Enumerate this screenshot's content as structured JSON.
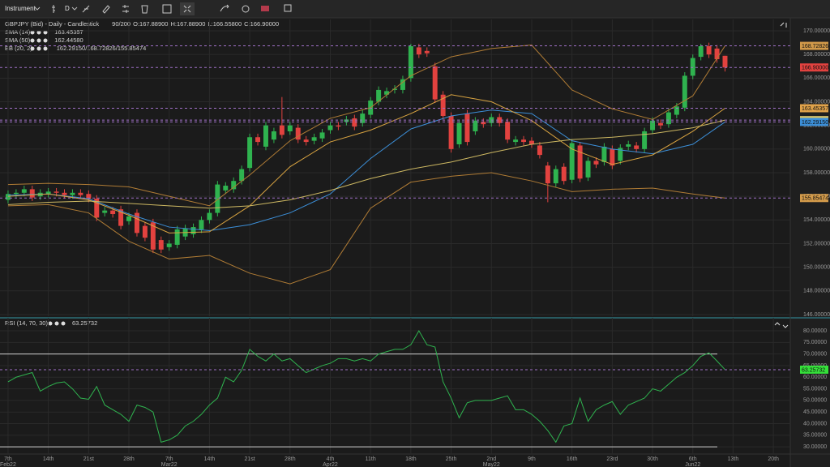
{
  "toolbar": {
    "instrument": "Instrument",
    "period": "D"
  },
  "chart_data": [
    {
      "type": "candlestick",
      "title": "GBPJPY (Bid) - Daily - Candlestick",
      "count": "90/200",
      "ohlc_labels": [
        "O:167.88900",
        "H:167.88900",
        "L:166.55800",
        "C:166.90000"
      ],
      "xlim": [
        -1,
        97.1
      ],
      "xticks": [
        {
          "value": 0,
          "label": "7th",
          "month": "Feb22"
        },
        {
          "value": 5,
          "label": "14th"
        },
        {
          "value": 10,
          "label": "21st"
        },
        {
          "value": 15,
          "label": "28th"
        },
        {
          "value": 20,
          "label": "7th",
          "month": "Mar22"
        },
        {
          "value": 25,
          "label": "14th"
        },
        {
          "value": 30,
          "label": "21st"
        },
        {
          "value": 35,
          "label": "28th"
        },
        {
          "value": 40,
          "label": "4th",
          "month": "Apr22"
        },
        {
          "value": 45,
          "label": "11th"
        },
        {
          "value": 50,
          "label": "18th"
        },
        {
          "value": 55,
          "label": "25th"
        },
        {
          "value": 60,
          "label": "2nd",
          "month": "May22"
        },
        {
          "value": 65,
          "label": "9th"
        },
        {
          "value": 70,
          "label": "16th"
        },
        {
          "value": 75,
          "label": "23rd"
        },
        {
          "value": 80,
          "label": "30th"
        },
        {
          "value": 85,
          "label": "6th",
          "month": "Jun22"
        },
        {
          "value": 90,
          "label": "13th"
        },
        {
          "value": 95,
          "label": "20th"
        }
      ],
      "ylim": [
        145.86,
        170.55
      ],
      "yticks": [
        {
          "value": 146,
          "label": "146.00000"
        },
        {
          "value": 148,
          "label": "148.00000"
        },
        {
          "value": 150,
          "label": "150.00000"
        },
        {
          "value": 152,
          "label": "152.00000"
        },
        {
          "value": 154,
          "label": "154.00000"
        },
        {
          "value": 156,
          "label": "156.00000"
        },
        {
          "value": 158,
          "label": "158.00000"
        },
        {
          "value": 160,
          "label": "160.00000"
        },
        {
          "value": 162,
          "label": "162.00000"
        },
        {
          "value": 164,
          "label": "164.00000"
        },
        {
          "value": 166,
          "label": "166.00000"
        },
        {
          "value": 168,
          "label": "168.00000"
        },
        {
          "value": 170,
          "label": "170.00000"
        }
      ],
      "grid": true,
      "up_color": "#2fb34f",
      "down_color": "#e2423f",
      "open": [
        155.7,
        156.2,
        156.3,
        156.6,
        156.0,
        156.2,
        156.4,
        156.3,
        156.1,
        156.3,
        156.2,
        155.8,
        154.6,
        154.8,
        154.9,
        153.9,
        154.6,
        153.5,
        153.8,
        152.3,
        151.7,
        151.9,
        152.6,
        152.8,
        153.2,
        154.0,
        154.6,
        156.5,
        156.6,
        157.3,
        158.4,
        161.0,
        160.2,
        160.8,
        162.0,
        161.5,
        161.8,
        160.8,
        160.7,
        160.9,
        161.6,
        162.0,
        162.3,
        162.6,
        162.2,
        162.9,
        164.0,
        164.6,
        165.0,
        165.0,
        166.0,
        168.6,
        168.3,
        167.0,
        164.6,
        162.8,
        160.4,
        163.0,
        161.5,
        162.3,
        162.2,
        162.7,
        162.3,
        160.6,
        160.8,
        160.7,
        160.3,
        158.6,
        157.1,
        158.5,
        157.4,
        160.3,
        157.6,
        159.0,
        158.9,
        160.0,
        159.0,
        160.2,
        160.3,
        160.0,
        161.6,
        162.2,
        162.1,
        162.9,
        163.5,
        166.2,
        167.8,
        168.7,
        168.5,
        167.889
      ],
      "high": [
        156.5,
        156.6,
        156.9,
        156.9,
        156.6,
        156.7,
        156.7,
        156.6,
        156.6,
        156.6,
        156.5,
        156.1,
        155.1,
        155.1,
        155.2,
        154.6,
        154.9,
        153.8,
        154.1,
        152.6,
        152.3,
        153.5,
        153.6,
        153.7,
        154.3,
        154.9,
        157.3,
        157.2,
        157.6,
        158.6,
        161.3,
        161.3,
        162.3,
        161.8,
        164.4,
        162.3,
        162.1,
        161.1,
        161.3,
        161.7,
        162.3,
        162.3,
        162.8,
        162.9,
        163.3,
        164.4,
        165.3,
        165.2,
        165.4,
        166.2,
        168.9,
        168.9,
        168.6,
        167.3,
        164.9,
        163.1,
        162.5,
        163.3,
        162.7,
        162.6,
        163.0,
        163.0,
        162.6,
        161.1,
        161.1,
        161.0,
        160.6,
        158.9,
        158.6,
        158.8,
        160.8,
        160.6,
        159.3,
        159.3,
        160.5,
        160.3,
        160.4,
        160.7,
        160.6,
        161.8,
        162.7,
        162.5,
        163.4,
        163.9,
        166.5,
        168.0,
        168.9,
        169.0,
        168.8,
        167.889
      ],
      "low": [
        155.4,
        155.9,
        156.0,
        155.6,
        155.7,
        155.9,
        156.0,
        155.8,
        155.8,
        155.8,
        155.5,
        153.9,
        154.3,
        154.2,
        153.2,
        153.6,
        152.6,
        152.2,
        151.2,
        151.2,
        151.4,
        151.6,
        152.3,
        152.5,
        152.9,
        153.7,
        154.3,
        156.2,
        156.3,
        157.0,
        158.1,
        160.3,
        159.9,
        160.5,
        160.9,
        161.2,
        160.5,
        160.3,
        160.4,
        160.6,
        161.3,
        161.6,
        162.0,
        161.6,
        161.9,
        162.6,
        163.7,
        164.3,
        164.7,
        164.7,
        165.7,
        167.7,
        167.8,
        163.9,
        162.5,
        159.7,
        160.1,
        160.3,
        161.2,
        161.8,
        161.9,
        161.9,
        160.5,
        160.3,
        160.3,
        160.1,
        159.2,
        155.5,
        156.8,
        157.0,
        157.1,
        157.2,
        157.3,
        158.4,
        158.6,
        158.3,
        158.7,
        159.9,
        159.7,
        159.7,
        161.3,
        161.7,
        161.8,
        162.6,
        163.2,
        165.9,
        167.5,
        167.7,
        167.3,
        166.558
      ],
      "close": [
        156.2,
        156.3,
        156.6,
        155.9,
        156.3,
        156.4,
        156.3,
        156.1,
        156.3,
        156.1,
        155.8,
        154.2,
        154.8,
        154.5,
        153.5,
        154.3,
        152.9,
        152.5,
        151.5,
        151.5,
        152.0,
        153.2,
        153.3,
        153.4,
        154.0,
        154.6,
        157.0,
        156.9,
        157.3,
        158.3,
        161.0,
        160.6,
        162.0,
        161.5,
        161.2,
        162.0,
        160.8,
        160.6,
        161.0,
        161.4,
        162.0,
        161.9,
        162.5,
        161.9,
        163.0,
        164.1,
        165.0,
        164.9,
        165.1,
        165.9,
        168.7,
        168.0,
        168.1,
        164.2,
        162.8,
        160.0,
        162.2,
        160.6,
        162.4,
        162.1,
        162.7,
        162.2,
        160.8,
        160.8,
        160.6,
        160.4,
        159.5,
        157.1,
        158.3,
        157.3,
        160.5,
        157.5,
        159.0,
        158.7,
        160.2,
        158.6,
        160.1,
        160.4,
        160.0,
        161.5,
        162.4,
        162.0,
        163.1,
        163.6,
        166.2,
        167.7,
        168.7,
        168.0,
        167.6,
        166.9
      ],
      "line_x": [
        0,
        5,
        10,
        15,
        20,
        25,
        30,
        35,
        40,
        45,
        50,
        55,
        60,
        65,
        70,
        75,
        80,
        85,
        89
      ],
      "series": [
        {
          "name": "SMA (14)",
          "legend_value": "163.45357",
          "color": "#d9a441",
          "values": [
            156.0,
            156.2,
            155.7,
            154.4,
            152.9,
            153.0,
            155.2,
            158.5,
            160.6,
            161.6,
            163.0,
            164.6,
            164.0,
            162.4,
            160.0,
            158.7,
            159.5,
            161.5,
            163.45357
          ]
        },
        {
          "name": "SMA (50)",
          "legend_value": "162.44580",
          "color": "#cdb862",
          "values": [
            155.3,
            155.5,
            155.6,
            155.4,
            155.2,
            155.0,
            155.2,
            155.7,
            156.5,
            157.5,
            158.3,
            158.9,
            159.7,
            160.4,
            160.8,
            161.0,
            161.3,
            161.8,
            162.4458
          ]
        }
      ],
      "bands": {
        "name": "BB (20, 2)",
        "legend_value": "162.29150/168.72826/155.85474",
        "basis_color": "#3c8fd8",
        "band_color": "#b07c35",
        "basis": [
          156.1,
          156.2,
          155.8,
          154.5,
          153.4,
          153.1,
          153.6,
          154.6,
          156.2,
          159.2,
          161.7,
          162.8,
          163.3,
          163.0,
          160.7,
          160.0,
          159.6,
          160.4,
          162.2915
        ],
        "upper": [
          157.0,
          157.1,
          157.0,
          156.8,
          156.0,
          155.2,
          157.8,
          160.7,
          162.6,
          163.5,
          166.2,
          167.8,
          168.5,
          168.8,
          165.0,
          163.4,
          162.5,
          164.5,
          168.72826
        ],
        "lower": [
          155.2,
          155.3,
          154.6,
          152.2,
          150.7,
          151.0,
          149.5,
          148.6,
          149.8,
          155.0,
          157.2,
          157.7,
          158.0,
          157.3,
          156.4,
          156.6,
          156.7,
          156.2,
          155.85474
        ]
      },
      "price_markers": [
        {
          "value": 168.72826,
          "label": "168.72826",
          "color": "#d29a4a"
        },
        {
          "value": 166.9,
          "label": "166.90000",
          "color": "#e2423f"
        },
        {
          "value": 163.45357,
          "label": "163.45357",
          "color": "#e0a24a"
        },
        {
          "value": 162.4458,
          "label": "162.44580",
          "color": "#d8c56a"
        },
        {
          "value": 162.2915,
          "label": "162.29150",
          "color": "#3c8fd8"
        },
        {
          "value": 155.85474,
          "label": "155.85474",
          "color": "#d29a4a"
        }
      ]
    },
    {
      "type": "line",
      "title": "RSI (14, 70, 30)",
      "legend_value": "63.25732",
      "color": "#2fb34f",
      "xlim": [
        -1,
        97.1
      ],
      "ylim": [
        26.9,
        83.5
      ],
      "yticks": [
        {
          "value": 30,
          "label": "30.00000"
        },
        {
          "value": 35,
          "label": "35.00000"
        },
        {
          "value": 40,
          "label": "40.00000"
        },
        {
          "value": 45,
          "label": "45.00000"
        },
        {
          "value": 50,
          "label": "50.00000"
        },
        {
          "value": 55,
          "label": "55.00000"
        },
        {
          "value": 60,
          "label": "60.00000"
        },
        {
          "value": 65,
          "label": "65.00000"
        },
        {
          "value": 70,
          "label": "70.00000"
        },
        {
          "value": 75,
          "label": "75.00000"
        },
        {
          "value": 80,
          "label": "80.00000"
        }
      ],
      "levels": [
        70,
        30
      ],
      "values": [
        58,
        60,
        61,
        62,
        54,
        56,
        57.5,
        58,
        55,
        51,
        50.5,
        56,
        48,
        46,
        44,
        41,
        48,
        47,
        45,
        32,
        33,
        35,
        39,
        41,
        44,
        48,
        51,
        60,
        58,
        63,
        72,
        69,
        67,
        70,
        67,
        68,
        65,
        62,
        63.5,
        65,
        66,
        68,
        68,
        67,
        68,
        67,
        70,
        71,
        72,
        72,
        74,
        80,
        74,
        73,
        58,
        51,
        42.5,
        49,
        50,
        50,
        50,
        51,
        52,
        46,
        46,
        44,
        41,
        37,
        32,
        39,
        40,
        51,
        41,
        46,
        48,
        49.5,
        44,
        48,
        49.5,
        51,
        55,
        54,
        57,
        60,
        62,
        65,
        69,
        70.5,
        67,
        63.25732
      ],
      "marker": {
        "value": 63.25732,
        "label": "63.25732",
        "color": "#35e03a"
      }
    }
  ]
}
